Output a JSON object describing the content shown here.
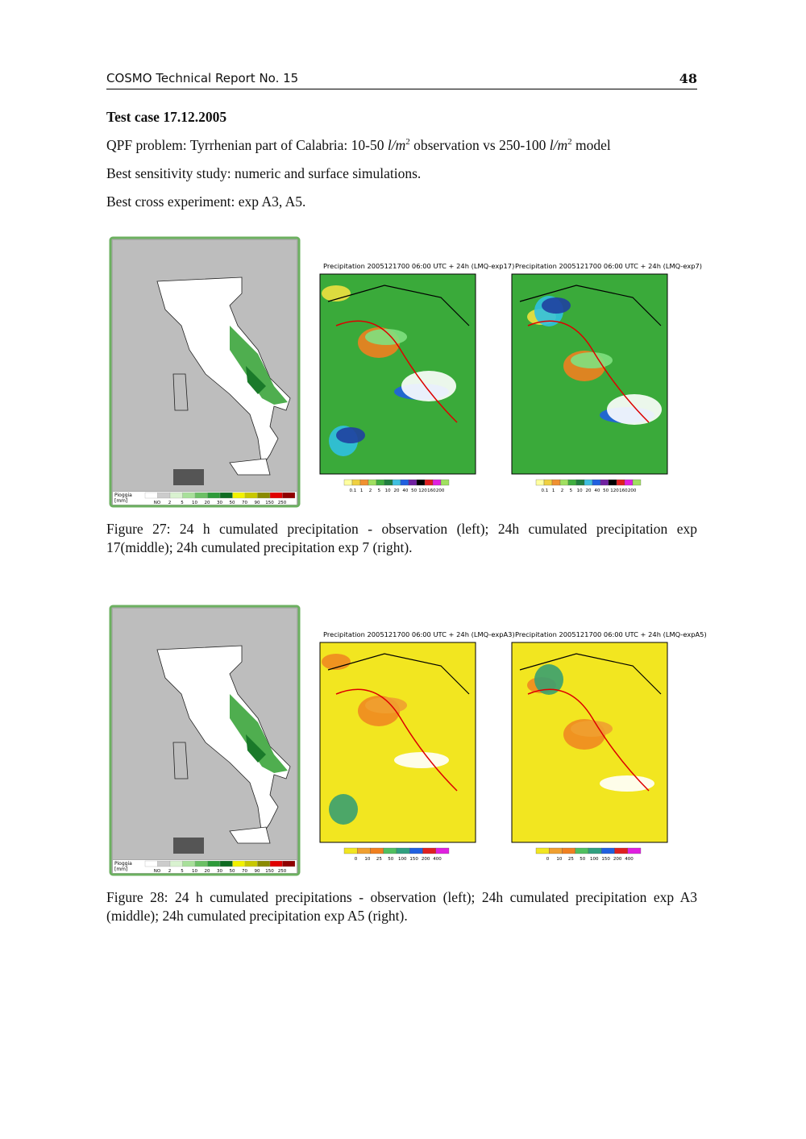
{
  "header": {
    "title": "COSMO Technical Report No. 15",
    "page": "48"
  },
  "heading": "Test case 17.12.2005",
  "paragraphs": [
    {
      "parts": [
        "QPF problem: Tyrrhenian part of Calabria: 10-50 ",
        "l/m",
        "2",
        " observation vs 250-100 ",
        "l/m",
        "2",
        " model"
      ]
    },
    {
      "parts": [
        "Best sensitivity study: numeric and surface simulations."
      ]
    },
    {
      "parts": [
        "Best cross experiment: exp A3, A5."
      ]
    }
  ],
  "figures": [
    {
      "observation": {
        "legend_title": [
          "Pioggia",
          "[mm]"
        ],
        "legend_labels": [
          "NO",
          "2",
          "5",
          "10",
          "20",
          "30",
          "50",
          "70",
          "90",
          "150",
          "250"
        ]
      },
      "models": [
        {
          "title": "Precipitation 2005121700 06:00 UTC + 24h (LMQ-exp17)",
          "colorbar_labels": [
            "0.1",
            "1",
            "2",
            "5",
            "10",
            "20",
            "40",
            "50",
            "120",
            "160",
            "200"
          ]
        },
        {
          "title": "Precipitation 2005121700 06:00 UTC + 24h (LMQ-exp7)",
          "colorbar_labels": [
            "0.1",
            "1",
            "2",
            "5",
            "10",
            "20",
            "40",
            "50",
            "120",
            "160",
            "200"
          ]
        }
      ],
      "caption": "Figure 27: 24 h cumulated precipitation - observation (left); 24h cumulated precipitation exp 17(middle); 24h cumulated precipitation exp 7 (right)."
    },
    {
      "observation": {
        "legend_title": [
          "Pioggia",
          "[mm]"
        ],
        "legend_labels": [
          "NO",
          "2",
          "5",
          "10",
          "20",
          "30",
          "50",
          "70",
          "90",
          "150",
          "250"
        ]
      },
      "models": [
        {
          "title": "Precipitation 2005121700 06:00 UTC + 24h (LMQ-expA3)",
          "colorbar_labels": [
            "0",
            "10",
            "25",
            "50",
            "100",
            "150",
            "200",
            "400"
          ]
        },
        {
          "title": "Precipitation 2005121700 06:00 UTC + 24h (LMQ-expA5)",
          "colorbar_labels": [
            "0",
            "10",
            "25",
            "50",
            "100",
            "150",
            "200",
            "400"
          ]
        }
      ],
      "caption": "Figure 28: 24 h cumulated precipitations - observation (left); 24h cumulated precipitation exp A3 (middle); 24h cumulated precipitation exp A5 (right)."
    }
  ]
}
